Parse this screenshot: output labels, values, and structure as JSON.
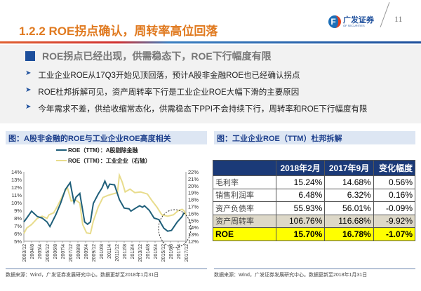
{
  "header": {
    "title": "1.2.2 ROE拐点确认，周转率高位回落",
    "logo_cn": "广发证券",
    "logo_en": "GF SECURITIES",
    "page": "11"
  },
  "summary": {
    "headline": "ROE拐点已经出现，供需稳态下，ROE下行幅度有限",
    "bullets": [
      "工业企业ROE从17Q3开始见顶回落，预计A股非金融ROE也已经确认拐点",
      "ROE杜邦拆解可见，资产周转率下行是工业企业ROE大幅下滑的主要原因",
      "今年需求不差，供给收缩常态化，供需稳态下PPI不会持续下行，周转率和ROE下行幅度有限"
    ]
  },
  "left_panel": {
    "title": "图：A股非金融的ROE与工业企业ROE高度相关",
    "source": "数据来源：Wind，广发证券发展研究中心。数据更新至2018年1月31日"
  },
  "right_panel": {
    "title": "图：工业企业ROE（TTM）杜邦拆解",
    "source": "数据来源：Wind，广发证券发展研究中心。数据更新至2018年1月31日",
    "columns": [
      "",
      "2018年2月",
      "2017年9月",
      "变化幅度"
    ],
    "rows": [
      [
        "毛利率",
        "15.24%",
        "14.68%",
        "0.56%"
      ],
      [
        "销售利润率",
        "6.48%",
        "6.32%",
        "0.16%"
      ],
      [
        "资产负债率",
        "55.93%",
        "56.01%",
        "-0.09%"
      ],
      [
        "资产周转率",
        "106.76%",
        "116.68%",
        "-9.92%"
      ],
      [
        "ROE",
        "15.70%",
        "16.78%",
        "-1.07%"
      ]
    ]
  },
  "chart_data": {
    "type": "line",
    "grid": false,
    "legend": "top",
    "x_ticks": [
      "2003/12",
      "2004/8",
      "2005/4",
      "2005/12",
      "2006/8",
      "2007/4",
      "2007/12",
      "2008/8",
      "2009/4",
      "2009/12",
      "2010/8",
      "2011/4",
      "2011/12",
      "2012/8",
      "2013/4",
      "2013/12",
      "2014/8",
      "2015/4",
      "2015/12",
      "2016/8",
      "2017/4",
      "2017/12"
    ],
    "y_left": {
      "ticks": [
        "5%",
        "6%",
        "7%",
        "8%",
        "9%",
        "10%",
        "11%",
        "12%",
        "13%",
        "14%"
      ],
      "range": [
        5,
        14
      ]
    },
    "y_right": {
      "ticks": [
        "12%",
        "13%",
        "14%",
        "15%",
        "16%",
        "17%",
        "18%",
        "19%",
        "20%",
        "21%",
        "22%"
      ],
      "range": [
        12,
        22
      ]
    },
    "series": [
      {
        "name": "ROE（TTM）：A股剔除金融",
        "axis": "left",
        "color": "#1f5f7a",
        "points": [
          [
            "2003-12",
            7.5
          ],
          [
            "2004-03",
            8.0
          ],
          [
            "2004-08",
            8.9
          ],
          [
            "2005-02",
            8.2
          ],
          [
            "2005-07",
            8.0
          ],
          [
            "2005-12",
            7.5
          ],
          [
            "2006-03",
            6.9
          ],
          [
            "2006-09",
            8.4
          ],
          [
            "2007-02",
            9.9
          ],
          [
            "2007-07",
            11.7
          ],
          [
            "2007-12",
            12.6
          ],
          [
            "2008-04",
            10.0
          ],
          [
            "2008-06",
            10.7
          ],
          [
            "2008-10",
            11.2
          ],
          [
            "2009-03",
            7.5
          ],
          [
            "2009-06",
            7.2
          ],
          [
            "2009-09",
            7.5
          ],
          [
            "2009-12",
            9.9
          ],
          [
            "2010-05",
            11.1
          ],
          [
            "2010-09",
            11.9
          ],
          [
            "2010-12",
            12.8
          ],
          [
            "2011-03",
            11.9
          ],
          [
            "2011-05",
            12.4
          ],
          [
            "2011-10",
            12.3
          ],
          [
            "2012-03",
            10.4
          ],
          [
            "2012-08",
            9.3
          ],
          [
            "2013-01",
            9.2
          ],
          [
            "2013-03",
            8.9
          ],
          [
            "2013-08",
            9.3
          ],
          [
            "2013-12",
            9.6
          ],
          [
            "2014-03",
            9.4
          ],
          [
            "2014-05",
            9.6
          ],
          [
            "2014-10",
            9.0
          ],
          [
            "2015-03",
            8.0
          ],
          [
            "2015-08",
            7.8
          ],
          [
            "2016-01",
            6.7
          ],
          [
            "2016-05",
            6.3
          ],
          [
            "2016-09",
            6.4
          ],
          [
            "2017-03",
            7.5
          ],
          [
            "2017-08",
            8.2
          ],
          [
            "2017-10",
            8.7
          ]
        ]
      },
      {
        "name": "ROE（TTM）：工业企业（右轴）",
        "axis": "right",
        "color": "#e8dc8c",
        "points": [
          [
            "2003-12",
            13.1
          ],
          [
            "2004-03",
            13.9
          ],
          [
            "2004-08",
            14.4
          ],
          [
            "2005-02",
            15.3
          ],
          [
            "2005-07",
            15.6
          ],
          [
            "2005-12",
            15.3
          ],
          [
            "2006-02",
            15.8
          ],
          [
            "2006-07",
            16.1
          ],
          [
            "2006-11",
            17.1
          ],
          [
            "2007-04",
            18.5
          ],
          [
            "2007-09",
            19.8
          ],
          [
            "2008-01",
            17.8
          ],
          [
            "2008-06",
            17.9
          ],
          [
            "2008-10",
            17.5
          ],
          [
            "2009-01",
            14.4
          ],
          [
            "2009-05",
            13.2
          ],
          [
            "2009-09",
            13.1
          ],
          [
            "2009-12",
            14.9
          ],
          [
            "2010-05",
            16.9
          ],
          [
            "2010-10",
            18.3
          ],
          [
            "2011-03",
            18.6
          ],
          [
            "2011-08",
            18.8
          ],
          [
            "2012-01",
            19.0
          ],
          [
            "2012-03",
            21.5
          ],
          [
            "2012-06",
            20.5
          ],
          [
            "2012-09",
            19.1
          ],
          [
            "2013-02",
            19.5
          ],
          [
            "2013-07",
            19.0
          ],
          [
            "2014-01",
            19.1
          ],
          [
            "2014-08",
            18.8
          ],
          [
            "2015-01",
            17.8
          ],
          [
            "2015-06",
            16.9
          ],
          [
            "2015-11",
            15.8
          ],
          [
            "2016-05",
            15.6
          ],
          [
            "2016-11",
            15.8
          ],
          [
            "2017-04",
            16.4
          ],
          [
            "2017-08",
            16.6
          ],
          [
            "2017-10",
            16.4
          ],
          [
            "2017-12",
            15.8
          ]
        ]
      }
    ]
  }
}
